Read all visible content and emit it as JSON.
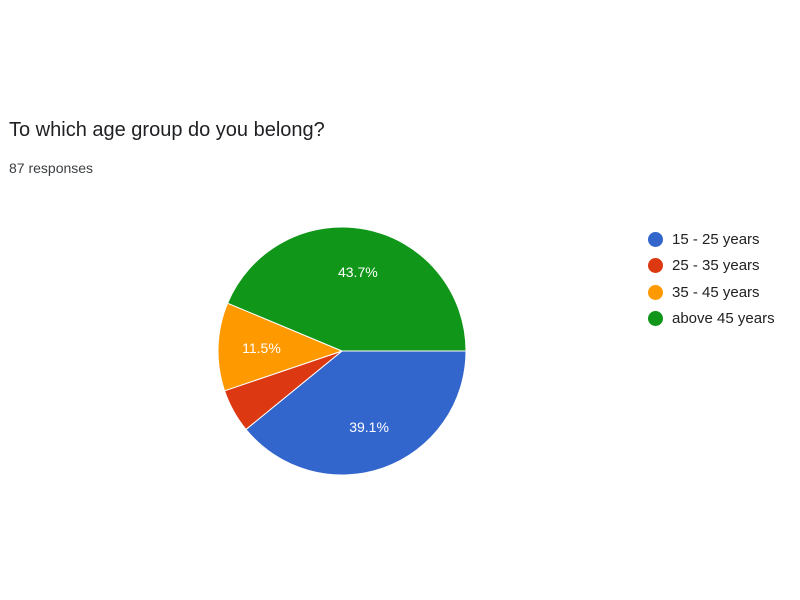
{
  "question": {
    "title": "To which age group do you belong?",
    "responses": "87 responses"
  },
  "chart_data": {
    "type": "pie",
    "title": "",
    "legend_position": "right",
    "start_angle_deg": 90,
    "direction": "clockwise",
    "slices": [
      {
        "label": "15 - 25 years",
        "value": 39.1,
        "display": "39.1%",
        "color": "#3366cc"
      },
      {
        "label": "25 - 35 years",
        "value": 5.7,
        "display": "",
        "color": "#dc3912"
      },
      {
        "label": "35 - 45 years",
        "value": 11.5,
        "display": "11.5%",
        "color": "#ff9900"
      },
      {
        "label": "above 45 years",
        "value": 43.7,
        "display": "43.7%",
        "color": "#109618"
      }
    ]
  }
}
